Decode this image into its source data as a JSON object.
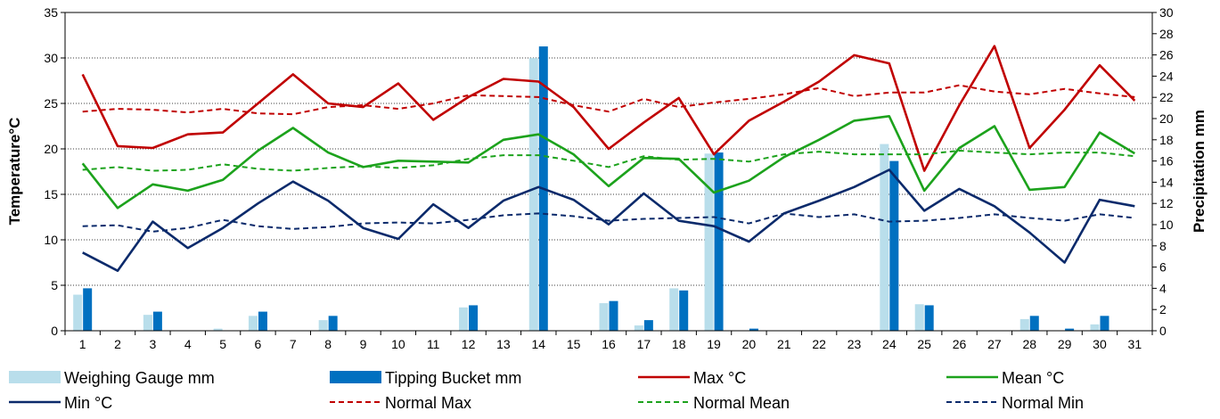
{
  "chart_data": {
    "type": "bar+line",
    "x": [
      "1",
      "2",
      "3",
      "4",
      "5",
      "6",
      "7",
      "8",
      "9",
      "10",
      "11",
      "12",
      "13",
      "14",
      "15",
      "16",
      "17",
      "18",
      "19",
      "20",
      "21",
      "22",
      "23",
      "24",
      "25",
      "26",
      "27",
      "28",
      "29",
      "30",
      "31"
    ],
    "y_left": {
      "label": "Temperature°C",
      "lim": [
        0,
        35
      ],
      "ticks": [
        "0",
        "5",
        "10",
        "15",
        "20",
        "25",
        "30",
        "35"
      ]
    },
    "y_right": {
      "label": "Precipitation mm",
      "lim": [
        0,
        30
      ],
      "ticks": [
        "0",
        "2",
        "4",
        "6",
        "8",
        "10",
        "12",
        "14",
        "16",
        "18",
        "20",
        "22",
        "24",
        "26",
        "28",
        "30"
      ]
    },
    "grid": "horizontal dotted",
    "legend_position": "bottom",
    "bar_series": [
      {
        "name": "Weighing Gauge mm",
        "color": "#B9DEEB",
        "values": [
          3.4,
          0,
          1.5,
          0,
          0.2,
          1.4,
          0,
          1.0,
          0,
          0,
          0,
          2.2,
          0,
          25.7,
          0,
          2.6,
          0.5,
          4.0,
          16.7,
          0,
          0,
          0,
          0,
          17.6,
          2.5,
          0,
          0,
          1.1,
          0,
          0.6,
          0
        ]
      },
      {
        "name": "Tipping Bucket mm",
        "color": "#0070C0",
        "values": [
          4.0,
          0,
          1.8,
          0,
          0,
          1.8,
          0,
          1.4,
          0,
          0,
          0,
          2.4,
          0,
          26.8,
          0,
          2.8,
          1.0,
          3.8,
          16.8,
          0.2,
          0,
          0,
          0,
          16.0,
          2.4,
          0,
          0,
          1.4,
          0.2,
          1.4,
          0
        ]
      }
    ],
    "line_series": [
      {
        "name": "Max °C",
        "color": "#C00000",
        "dash": false,
        "values": [
          28.2,
          20.3,
          20.1,
          21.6,
          21.8,
          25.0,
          28.2,
          25.0,
          24.6,
          27.2,
          23.2,
          25.7,
          27.7,
          27.4,
          24.6,
          20.0,
          22.9,
          25.6,
          19.4,
          23.1,
          25.2,
          27.4,
          30.3,
          29.4,
          17.6,
          24.8,
          31.3,
          20.1,
          24.3,
          29.2,
          25.3
        ]
      },
      {
        "name": "Mean °C",
        "color": "#1CA21C",
        "dash": false,
        "values": [
          18.4,
          13.5,
          16.1,
          15.4,
          16.6,
          19.8,
          22.3,
          19.6,
          18.0,
          18.7,
          18.6,
          18.5,
          21.0,
          21.6,
          19.4,
          15.9,
          19.0,
          18.9,
          15.2,
          16.5,
          19.1,
          21.0,
          23.1,
          23.6,
          15.4,
          20.1,
          22.5,
          15.5,
          15.8,
          21.8,
          19.5
        ]
      },
      {
        "name": "Min °C",
        "color": "#0B2A6B",
        "dash": false,
        "values": [
          8.6,
          6.6,
          12.0,
          9.1,
          11.3,
          14.0,
          16.4,
          14.3,
          11.3,
          10.1,
          13.9,
          11.3,
          14.3,
          15.8,
          14.4,
          11.7,
          15.1,
          12.1,
          11.5,
          9.8,
          12.9,
          14.3,
          15.8,
          17.7,
          13.2,
          15.6,
          13.7,
          10.8,
          7.5,
          14.4,
          13.7
        ]
      },
      {
        "name": "Normal Max",
        "color": "#C00000",
        "dash": true,
        "values": [
          24.1,
          24.4,
          24.3,
          24.0,
          24.4,
          23.9,
          23.8,
          24.6,
          24.8,
          24.4,
          25.0,
          25.9,
          25.8,
          25.7,
          24.8,
          24.1,
          25.5,
          24.6,
          25.1,
          25.5,
          26.0,
          26.7,
          25.8,
          26.2,
          26.2,
          27.0,
          26.3,
          26.0,
          26.6,
          26.1,
          25.7
        ]
      },
      {
        "name": "Normal Mean",
        "color": "#1CA21C",
        "dash": true,
        "values": [
          17.7,
          18.0,
          17.6,
          17.7,
          18.3,
          17.8,
          17.6,
          17.9,
          18.1,
          17.9,
          18.2,
          18.9,
          19.3,
          19.3,
          18.7,
          18.0,
          19.2,
          18.8,
          18.9,
          18.6,
          19.4,
          19.7,
          19.4,
          19.4,
          19.4,
          19.8,
          19.6,
          19.4,
          19.6,
          19.6,
          19.2
        ]
      },
      {
        "name": "Normal Min",
        "color": "#0B2A6B",
        "dash": true,
        "values": [
          11.5,
          11.6,
          10.9,
          11.3,
          12.2,
          11.5,
          11.2,
          11.4,
          11.8,
          11.9,
          11.8,
          12.2,
          12.7,
          12.9,
          12.6,
          12.1,
          12.3,
          12.4,
          12.5,
          11.8,
          12.9,
          12.5,
          12.8,
          12.0,
          12.1,
          12.4,
          12.8,
          12.4,
          12.1,
          12.8,
          12.4
        ]
      }
    ]
  }
}
